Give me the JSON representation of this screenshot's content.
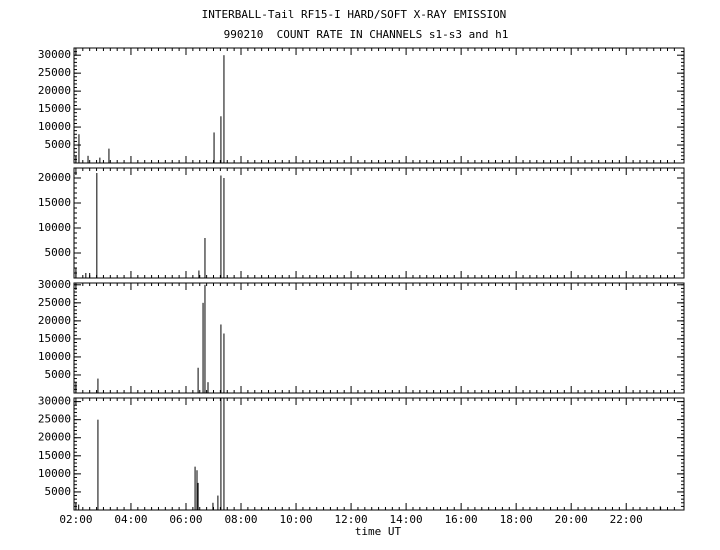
{
  "chart_data": [
    {
      "type": "bar",
      "title": "INTERBALL-Tail RF15-I HARD/SOFT X-RAY EMISSION",
      "subtitle": "990210  COUNT RATE IN CHANNELS s1-s3 and h1",
      "x": [
        2.0,
        2.11,
        2.44,
        2.87,
        3.2,
        7.02,
        7.27,
        7.38
      ],
      "values": [
        2000,
        8000,
        2000,
        1500,
        4000,
        8500,
        13000,
        30000
      ],
      "color": "#000000",
      "xlim": [
        1.93,
        24.1
      ],
      "ylim": [
        0,
        32000
      ],
      "yticks": [
        5000,
        10000,
        15000,
        20000,
        25000,
        30000
      ]
    },
    {
      "type": "bar",
      "x": [
        2.0,
        2.36,
        2.5,
        2.76,
        6.47,
        6.69,
        7.27,
        7.38
      ],
      "values": [
        2000,
        1000,
        1000,
        21000,
        1500,
        8000,
        20500,
        20000
      ],
      "color": "#000000",
      "xlim": [
        1.93,
        24.1
      ],
      "ylim": [
        0,
        22000
      ],
      "yticks": [
        5000,
        10000,
        15000,
        20000
      ]
    },
    {
      "type": "bar",
      "x": [
        2.0,
        2.8,
        6.44,
        6.62,
        6.69,
        6.8,
        7.27,
        7.38
      ],
      "values": [
        3000,
        4000,
        7000,
        25000,
        30000,
        3000,
        19000,
        16500
      ],
      "color": "#000000",
      "xlim": [
        1.93,
        24.1
      ],
      "ylim": [
        0,
        30500
      ],
      "yticks": [
        5000,
        10000,
        15000,
        20000,
        25000,
        30000
      ]
    },
    {
      "type": "bar",
      "xlabel": "time UT",
      "x": [
        2.0,
        2.1,
        2.8,
        6.0,
        6.33,
        6.4,
        6.44,
        6.98,
        7.16,
        7.27,
        7.38,
        23.24
      ],
      "values": [
        2000,
        1500,
        25000,
        1500,
        12000,
        11000,
        7500,
        2000,
        4000,
        31000,
        31000,
        1000
      ],
      "color": "#000000",
      "xlim": [
        1.93,
        24.1
      ],
      "ylim": [
        0,
        31000
      ],
      "yticks": [
        5000,
        10000,
        15000,
        20000,
        25000,
        30000
      ],
      "xticks": [
        {
          "value": 2,
          "label": "02:00"
        },
        {
          "value": 4,
          "label": "04:00"
        },
        {
          "value": 6,
          "label": "06:00"
        },
        {
          "value": 8,
          "label": "08:00"
        },
        {
          "value": 10,
          "label": "10:00"
        },
        {
          "value": 12,
          "label": "12:00"
        },
        {
          "value": 14,
          "label": "14:00"
        },
        {
          "value": 16,
          "label": "16:00"
        },
        {
          "value": 18,
          "label": "18:00"
        },
        {
          "value": 20,
          "label": "20:00"
        },
        {
          "value": 22,
          "label": "22:00"
        }
      ]
    }
  ]
}
